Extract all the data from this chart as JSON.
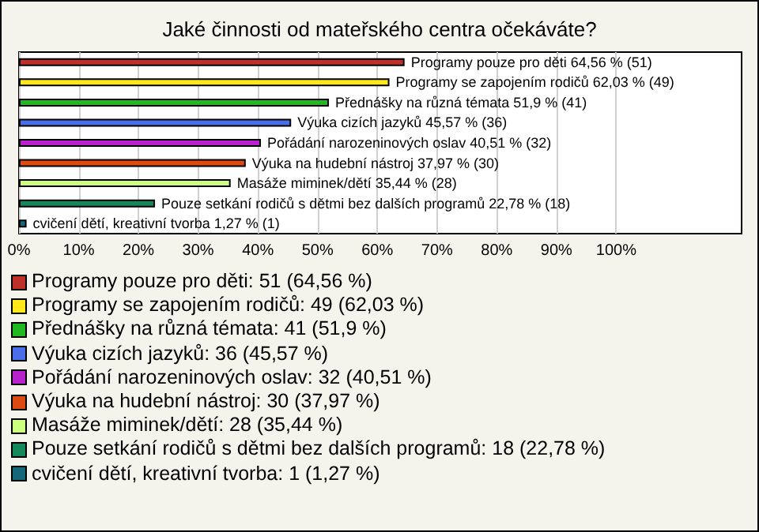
{
  "chart_data": {
    "type": "bar",
    "orientation": "horizontal",
    "title": "Jaké činnosti od mateřského centra očekáváte?",
    "categories": [
      null,
      null,
      null,
      null,
      null,
      null,
      null,
      null,
      null
    ],
    "values": [
      64.56,
      62.03,
      51.9,
      45.57,
      40.51,
      37.97,
      35.44,
      22.78,
      1.27
    ],
    "value_labels": [
      "Programy pouze pro děti 64,56 % (51)",
      "Programy se zapojením rodičů 62,03 % (49)",
      "Přednášky na různá témata 51,9 % (41)",
      "Výuka cizích jazyků 45,57 % (36)",
      "Pořádání narozeninových oslav 40,51 % (32)",
      "Výuka na hudební nástroj 37,97 % (30)",
      "Masáže miminek/dětí 35,44 % (28)",
      "Pouze setkání rodičů s dětmi bez dalších programů 22,78 % (18)",
      "cvičení dětí, kreativní tvorba 1,27 % (1)"
    ],
    "colors": [
      "#c0302a",
      "#ffe81a",
      "#22b822",
      "#4a6ee8",
      "#b822cc",
      "#dd4a14",
      "#ccff80",
      "#14885a",
      "#14687a"
    ],
    "xlim": [
      0,
      121
    ],
    "xticks": [
      {
        "value": 0,
        "label": "0%"
      },
      {
        "value": 10,
        "label": "10%"
      },
      {
        "value": 20,
        "label": "20%"
      },
      {
        "value": 30,
        "label": "30%"
      },
      {
        "value": 40,
        "label": "40%"
      },
      {
        "value": 50,
        "label": "50%"
      },
      {
        "value": 60,
        "label": "60%"
      },
      {
        "value": 70,
        "label": "70%"
      },
      {
        "value": 80,
        "label": "80%"
      },
      {
        "value": 90,
        "label": "90%"
      },
      {
        "value": 100,
        "label": "100%"
      }
    ],
    "grid": "x",
    "annotations": [
      "Programy pouze pro děti: 51 (64,56 %)",
      "Programy se zapojením rodičů: 49 (62,03 %)",
      "Přednášky na různá témata: 41 (51,9 %)",
      "Výuka cizích jazyků: 36 (45,57 %)",
      "Pořádání narozeninových oslav: 32 (40,51 %)",
      "Výuka na hudební nástroj: 30 (37,97 %)",
      "Masáže miminek/dětí: 28 (35,44 %)",
      "Pouze setkání rodičů s dětmi bez dalších programů: 18 (22,78 %)",
      "cvičení dětí, kreativní tvorba: 1 (1,27 %)"
    ]
  }
}
